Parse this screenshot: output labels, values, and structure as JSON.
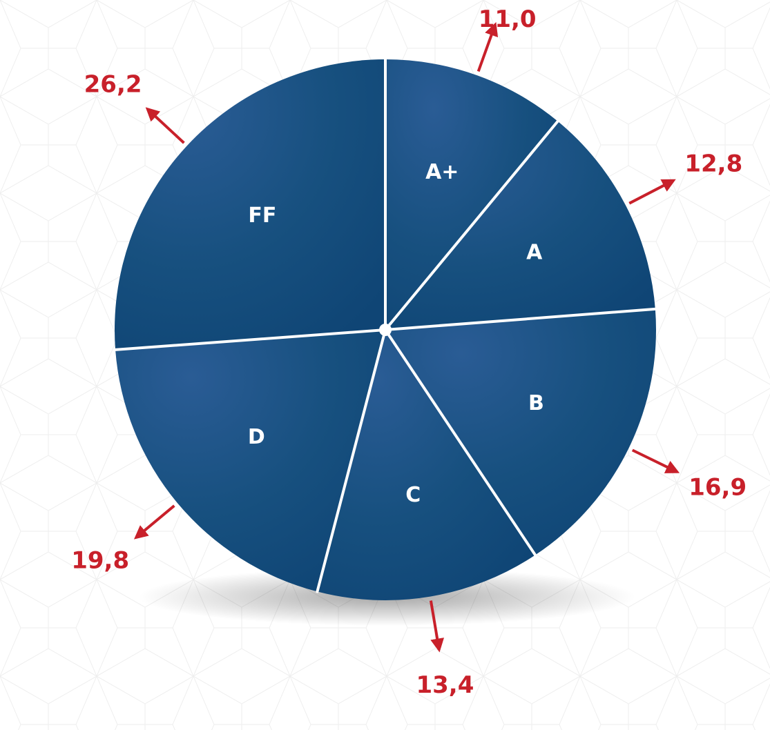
{
  "chart_data": {
    "type": "pie",
    "slices": [
      {
        "label": "A+",
        "value": 11.0,
        "value_label": "11,0"
      },
      {
        "label": "A",
        "value": 12.8,
        "value_label": "12,8"
      },
      {
        "label": "B",
        "value": 16.9,
        "value_label": "16,9"
      },
      {
        "label": "C",
        "value": 13.4,
        "value_label": "13,4"
      },
      {
        "label": "D",
        "value": 19.8,
        "value_label": "19,8"
      },
      {
        "label": "FF",
        "value": 26.2,
        "value_label": "26,2"
      }
    ],
    "start": "12 o'clock",
    "direction": "clockwise",
    "colors": {
      "slice": "#124b7e",
      "slice_highlight": "#285a92",
      "separator": "#ffffff",
      "value_text": "#c8202a",
      "arrow": "#c8202a",
      "slice_text": "#ffffff"
    }
  }
}
